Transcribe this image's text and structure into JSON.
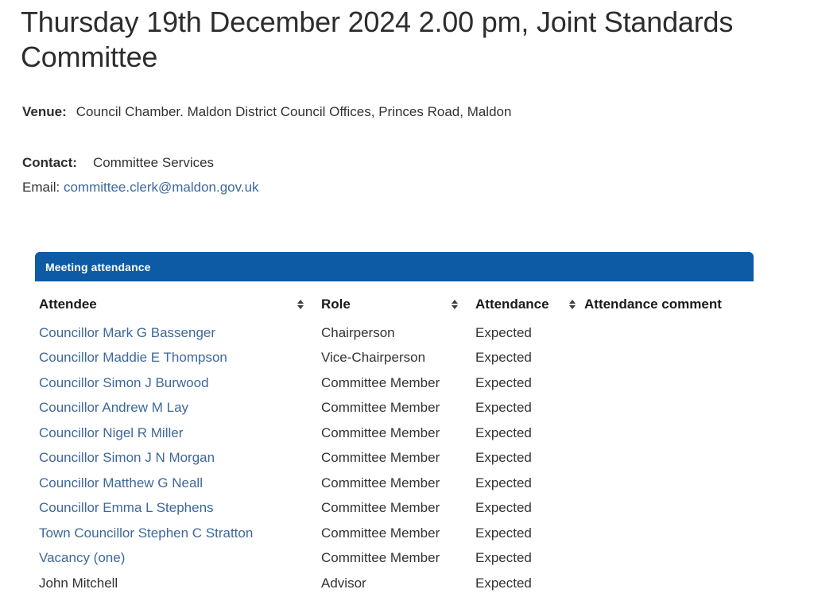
{
  "page": {
    "title": "Thursday 19th December 2024 2.00 pm, Joint Standards Committee",
    "venue_label": "Venue:",
    "venue_value": "Council Chamber. Maldon District Council Offices, Princes Road, Maldon",
    "contact_label": "Contact:",
    "contact_value": "Committee Services",
    "email_label": "Email:",
    "email_value": "committee.clerk@maldon.gov.uk"
  },
  "attendance": {
    "panel_title": "Meeting attendance",
    "columns": [
      {
        "key": "attendee",
        "label": "Attendee",
        "sortable": true
      },
      {
        "key": "role",
        "label": "Role",
        "sortable": true
      },
      {
        "key": "attendance",
        "label": "Attendance",
        "sortable": true
      },
      {
        "key": "comment",
        "label": "Attendance comment",
        "sortable": false
      }
    ],
    "rows": [
      {
        "attendee": "Councillor Mark G Bassenger",
        "is_link": true,
        "role": "Chairperson",
        "attendance": "Expected",
        "comment": ""
      },
      {
        "attendee": "Councillor Maddie E Thompson",
        "is_link": true,
        "role": "Vice-Chairperson",
        "attendance": "Expected",
        "comment": ""
      },
      {
        "attendee": "Councillor Simon J Burwood",
        "is_link": true,
        "role": "Committee Member",
        "attendance": "Expected",
        "comment": ""
      },
      {
        "attendee": "Councillor Andrew M Lay",
        "is_link": true,
        "role": "Committee Member",
        "attendance": "Expected",
        "comment": ""
      },
      {
        "attendee": "Councillor Nigel R Miller",
        "is_link": true,
        "role": "Committee Member",
        "attendance": "Expected",
        "comment": ""
      },
      {
        "attendee": "Councillor Simon J N Morgan",
        "is_link": true,
        "role": "Committee Member",
        "attendance": "Expected",
        "comment": ""
      },
      {
        "attendee": "Councillor Matthew G Neall",
        "is_link": true,
        "role": "Committee Member",
        "attendance": "Expected",
        "comment": ""
      },
      {
        "attendee": "Councillor Emma L Stephens",
        "is_link": true,
        "role": "Committee Member",
        "attendance": "Expected",
        "comment": ""
      },
      {
        "attendee": "Town Councillor Stephen C Stratton",
        "is_link": true,
        "role": "Committee Member",
        "attendance": "Expected",
        "comment": ""
      },
      {
        "attendee": "Vacancy (one)",
        "is_link": true,
        "role": "Committee Member",
        "attendance": "Expected",
        "comment": ""
      },
      {
        "attendee": "John Mitchell",
        "is_link": false,
        "role": "Advisor",
        "attendance": "Expected",
        "comment": ""
      }
    ]
  },
  "colors": {
    "panel_header_bg": "#0d5aa5",
    "link_blue": "#3d689b",
    "body_text": "#333333"
  }
}
